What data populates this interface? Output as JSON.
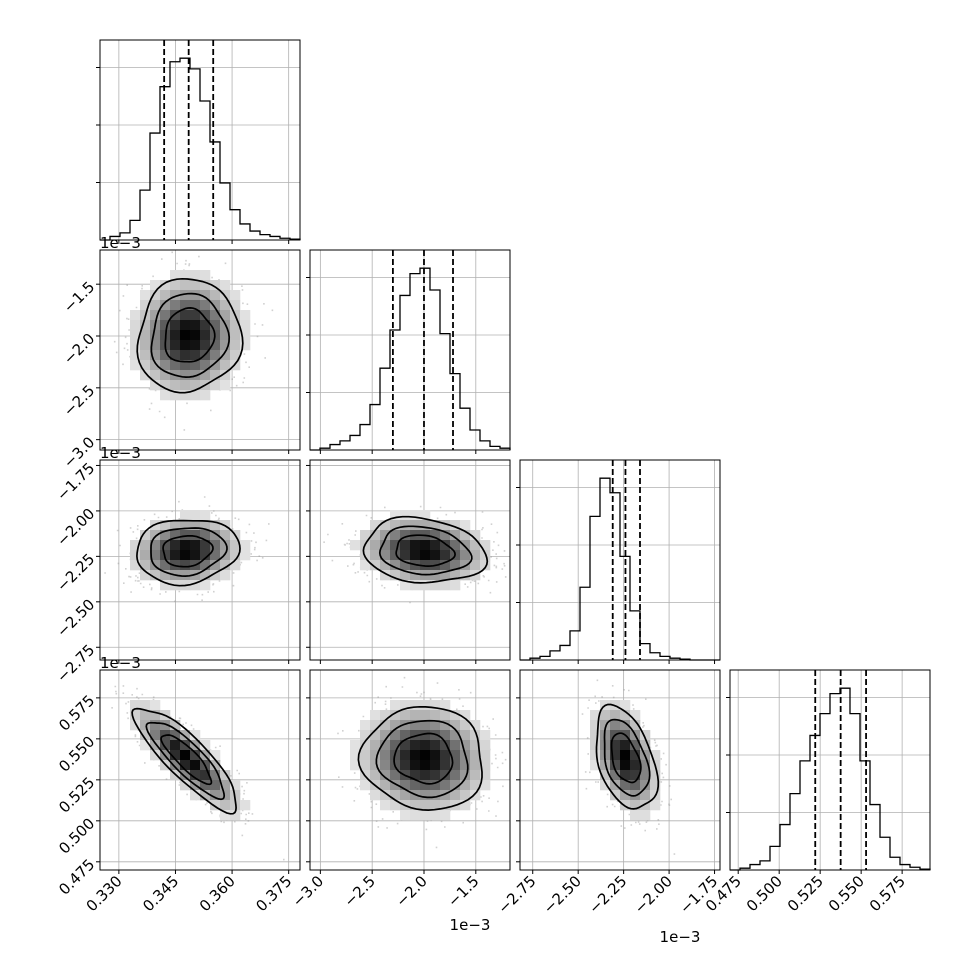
{
  "chart_data": {
    "type": "corner",
    "title": "",
    "parameters": [
      {
        "range": [
          0.325,
          0.378
        ],
        "ticks": [
          0.33,
          0.345,
          0.36,
          0.375
        ],
        "tick_labels": [
          "0.330",
          "0.345",
          "0.360",
          "0.375"
        ],
        "offset": "",
        "quantiles": [
          0.342,
          0.3485,
          0.355
        ]
      },
      {
        "range": [
          -3.1,
          -1.17
        ],
        "ticks": [
          -3.0,
          -2.5,
          -2.0,
          -1.5
        ],
        "tick_labels": [
          "−3.0",
          "−2.5",
          "−2.0",
          "−1.5"
        ],
        "offset": "1e−3",
        "quantiles": [
          -2.3,
          -2.0,
          -1.72
        ]
      },
      {
        "range": [
          -2.82,
          -1.72
        ],
        "ticks": [
          -2.75,
          -2.5,
          -2.25,
          -2.0,
          -1.75
        ],
        "tick_labels": [
          "−2.75",
          "−2.50",
          "−2.25",
          "−2.00",
          "−1.75"
        ],
        "offset": "1e−3",
        "quantiles": [
          -2.31,
          -2.24,
          -2.16
        ]
      },
      {
        "range": [
          0.47,
          0.592
        ],
        "ticks": [
          0.475,
          0.5,
          0.525,
          0.55,
          0.575
        ],
        "tick_labels": [
          "0.475",
          "0.500",
          "0.525",
          "0.550",
          "0.575"
        ],
        "offset": "1e−3",
        "quantiles": [
          0.522,
          0.5375,
          0.553
        ]
      }
    ],
    "histograms": [
      [
        0.0,
        0.02,
        0.04,
        0.11,
        0.28,
        0.6,
        0.86,
        1.0,
        1.02,
        0.96,
        0.78,
        0.55,
        0.32,
        0.17,
        0.09,
        0.05,
        0.03,
        0.02,
        0.01,
        0.005
      ],
      [
        0.0,
        0.01,
        0.03,
        0.05,
        0.08,
        0.14,
        0.25,
        0.45,
        0.66,
        0.85,
        0.97,
        1.0,
        0.88,
        0.64,
        0.42,
        0.23,
        0.11,
        0.05,
        0.02,
        0.01
      ],
      [
        0.0,
        0.01,
        0.02,
        0.05,
        0.08,
        0.16,
        0.4,
        0.79,
        1.0,
        0.92,
        0.57,
        0.27,
        0.09,
        0.04,
        0.02,
        0.01,
        0.005,
        0.0,
        0.0,
        0.0
      ],
      [
        0.0,
        0.01,
        0.03,
        0.05,
        0.13,
        0.25,
        0.42,
        0.6,
        0.74,
        0.86,
        0.97,
        1.0,
        0.86,
        0.6,
        0.36,
        0.18,
        0.07,
        0.03,
        0.015,
        0.005
      ]
    ],
    "pairs": [
      {
        "row": 1,
        "col": 0,
        "center": [
          0.3485,
          -2.0
        ],
        "sigma": [
          0.0065,
          0.26
        ],
        "rho": 0.05
      },
      {
        "row": 2,
        "col": 0,
        "center": [
          0.348,
          -2.22
        ],
        "sigma": [
          0.0065,
          0.085
        ],
        "rho": 0.1
      },
      {
        "row": 2,
        "col": 1,
        "center": [
          -2.0,
          -2.22
        ],
        "sigma": [
          0.28,
          0.085
        ],
        "rho": -0.15
      },
      {
        "row": 3,
        "col": 0,
        "center": [
          0.348,
          0.538
        ],
        "sigma": [
          0.0065,
          0.015
        ],
        "rho": -0.85
      },
      {
        "row": 3,
        "col": 1,
        "center": [
          -2.0,
          0.538
        ],
        "sigma": [
          0.28,
          0.015
        ],
        "rho": -0.05
      },
      {
        "row": 3,
        "col": 2,
        "center": [
          -2.24,
          0.538
        ],
        "sigma": [
          0.08,
          0.015
        ],
        "rho": -0.4
      }
    ],
    "grid": true,
    "legend": "none"
  }
}
